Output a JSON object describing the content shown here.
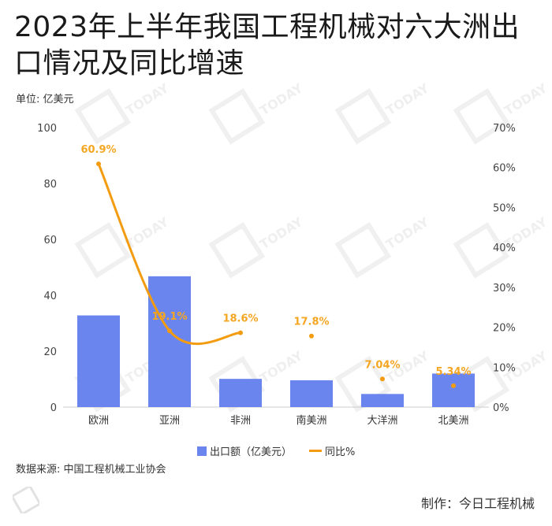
{
  "title": "2023年上半年我国工程机械对六大洲出口情况及同比增速",
  "unit_label": "单位: 亿美元",
  "source": "数据来源: 中国工程机械工业协会",
  "maker": "制作：今日工程机械",
  "watermark_text": "TODAY",
  "colors": {
    "bar": "#6b85ee",
    "line": "#f39c12",
    "label": "#f5a623"
  },
  "chart_data": {
    "type": "bar+line",
    "categories": [
      "欧洲",
      "亚洲",
      "非洲",
      "南美洲",
      "大洋洲",
      "北美洲"
    ],
    "series": [
      {
        "name": "出口额（亿美元）",
        "type": "bar",
        "axis": "left",
        "values": [
          32.8,
          46.8,
          10.1,
          9.6,
          4.7,
          12.0
        ]
      },
      {
        "name": "同比%",
        "type": "line",
        "axis": "right",
        "values": [
          60.9,
          19.1,
          18.6,
          17.8,
          7.04,
          5.34
        ],
        "labels": [
          "60.9%",
          "19.1%",
          "18.6%",
          "17.8%",
          "7.04%",
          "5.34%"
        ],
        "line_through_first_n": 3
      }
    ],
    "yleft": {
      "min": 0,
      "max": 100,
      "ticks": [
        "0",
        "20",
        "40",
        "60",
        "80",
        "100"
      ]
    },
    "yright": {
      "min": 0,
      "max": 70,
      "ticks": [
        "0%",
        "10%",
        "20%",
        "30%",
        "40%",
        "50%",
        "60%",
        "70%"
      ]
    },
    "legend_position": "bottom",
    "grid": false
  }
}
